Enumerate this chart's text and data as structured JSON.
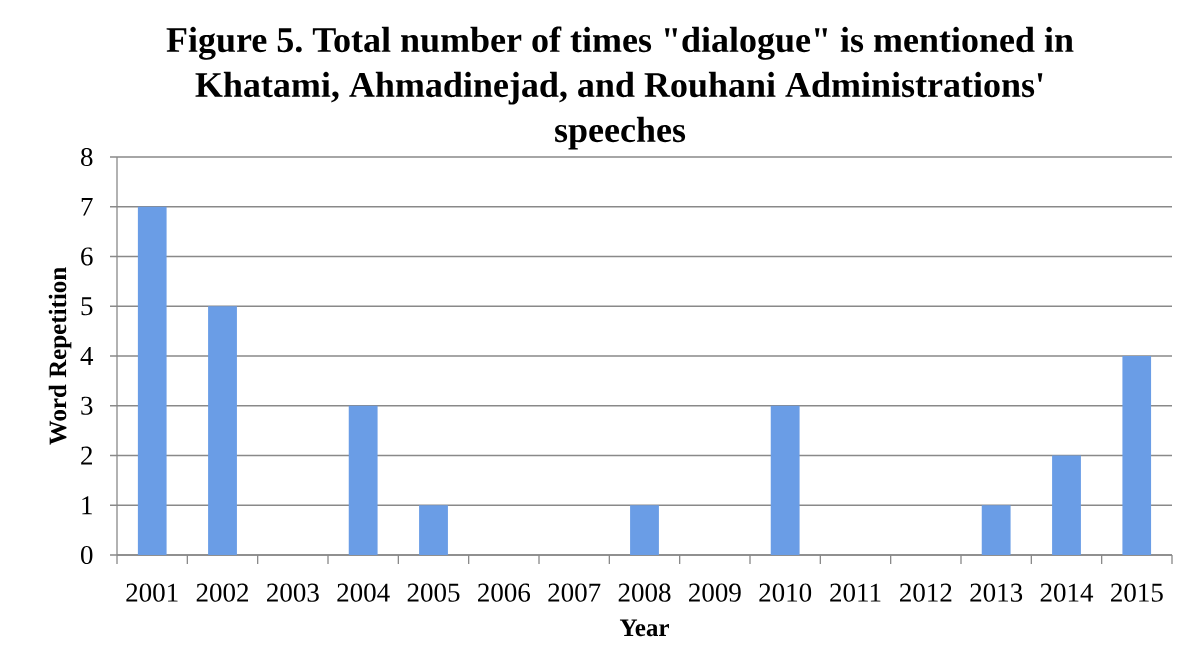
{
  "chart_data": {
    "type": "bar",
    "title": "Figure 5. Total number of times \"dialogue\" is mentioned in Khatami, Ahmadinejad, and Rouhani Administrations' speeches",
    "xlabel": "Year",
    "ylabel": "Word Repetition",
    "categories": [
      "2001",
      "2002",
      "2003",
      "2004",
      "2005",
      "2006",
      "2007",
      "2008",
      "2009",
      "2010",
      "2011",
      "2012",
      "2013",
      "2014",
      "2015"
    ],
    "values": [
      7,
      5,
      0,
      3,
      1,
      0,
      0,
      1,
      0,
      3,
      0,
      0,
      1,
      2,
      4
    ],
    "color": "#6a9de6",
    "ylim": [
      0,
      8
    ],
    "yticks": [
      0,
      1,
      2,
      3,
      4,
      5,
      6,
      7,
      8
    ],
    "grid": "y"
  }
}
